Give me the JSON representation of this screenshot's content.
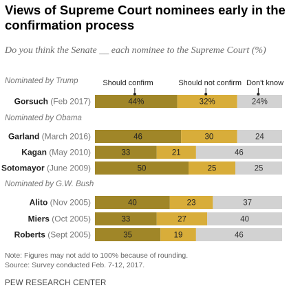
{
  "title": "Views of Supreme Court nominees early in the confirmation process",
  "subtitle": "Do you think the Senate __ each nominee to the Supreme Court (%)",
  "note": "Note: Figures may not add to 100% because of rounding.",
  "source": "Source: Survey conducted Feb. 7-12, 2017.",
  "org": "PEW RESEARCH CENTER",
  "colors": {
    "should_confirm": "#a08628",
    "should_not_confirm": "#d8ad3a",
    "dont_know": "#d2d2d2"
  },
  "chart_data": {
    "type": "bar",
    "orientation": "horizontal",
    "stacked": true,
    "legend": [
      "Should confirm",
      "Should not confirm",
      "Don't know"
    ],
    "groups": [
      {
        "label": "Nominated by Trump",
        "rows": [
          {
            "name": "Gorsuch",
            "date": "(Feb 2017)",
            "values": [
              44,
              32,
              24
            ],
            "labels": [
              "44%",
              "32%",
              "24%"
            ]
          }
        ]
      },
      {
        "label": "Nominated by Obama",
        "rows": [
          {
            "name": "Garland",
            "date": "(March 2016)",
            "values": [
              46,
              30,
              24
            ],
            "labels": [
              "46",
              "30",
              "24"
            ]
          },
          {
            "name": "Kagan",
            "date": "(May 2010)",
            "values": [
              33,
              21,
              46
            ],
            "labels": [
              "33",
              "21",
              "46"
            ]
          },
          {
            "name": "Sotomayor",
            "date": "(June 2009)",
            "values": [
              50,
              25,
              25
            ],
            "labels": [
              "50",
              "25",
              "25"
            ]
          }
        ]
      },
      {
        "label": "Nominated by G.W. Bush",
        "rows": [
          {
            "name": "Alito",
            "date": "(Nov 2005)",
            "values": [
              40,
              23,
              37
            ],
            "labels": [
              "40",
              "23",
              "37"
            ]
          },
          {
            "name": "Miers",
            "date": "(Oct 2005)",
            "values": [
              33,
              27,
              40
            ],
            "labels": [
              "33",
              "27",
              "40"
            ]
          },
          {
            "name": "Roberts",
            "date": "(Sept 2005)",
            "values": [
              35,
              19,
              46
            ],
            "labels": [
              "35",
              "19",
              "46"
            ]
          }
        ]
      }
    ]
  }
}
